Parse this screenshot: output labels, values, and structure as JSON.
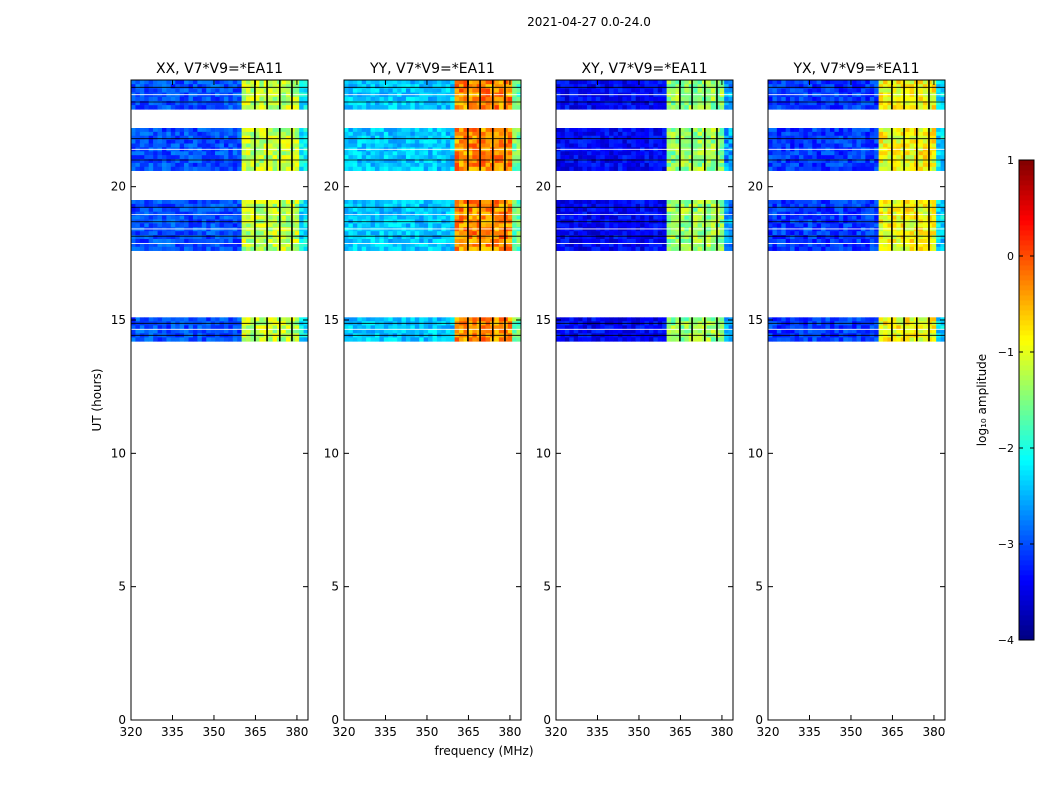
{
  "suptitle": "2021-04-27 0.0-24.0",
  "chart_data": {
    "type": "heatmap",
    "xlabel": "frequency (MHz)",
    "ylabel": "UT (hours)",
    "xlim": [
      320,
      384
    ],
    "ylim": [
      0,
      24
    ],
    "x_ticks": [
      320,
      335,
      350,
      365,
      380
    ],
    "y_ticks": [
      0,
      5,
      10,
      15,
      20
    ],
    "colorbar": {
      "label": "log₁₀ amplitude",
      "range": [
        -4,
        1
      ],
      "ticks": [
        1,
        0,
        -1,
        -2,
        -3,
        -4
      ],
      "tick_labels": [
        "1",
        "0",
        "−1",
        "−2",
        "−3",
        "−4"
      ],
      "colormap": "jet"
    },
    "data_time_ranges_hours": [
      [
        14.2,
        15.1
      ],
      [
        17.6,
        19.5
      ],
      [
        20.6,
        22.2
      ],
      [
        22.9,
        24.0
      ]
    ],
    "panels": [
      {
        "title": "XX, V7*V9=*EA11",
        "bg_level": -3.0,
        "band_level": -1.2
      },
      {
        "title": "YY, V7*V9=*EA11",
        "bg_level": -2.4,
        "band_level": -0.3
      },
      {
        "title": "XY, V7*V9=*EA11",
        "bg_level": -3.4,
        "band_level": -1.4
      },
      {
        "title": "YX, V7*V9=*EA11",
        "bg_level": -3.1,
        "band_level": -0.9
      }
    ],
    "high_band_mhz": [
      360.5,
      380
    ],
    "band_gaps_mhz": [
      364.8,
      369.2,
      373.8,
      378.2
    ]
  }
}
